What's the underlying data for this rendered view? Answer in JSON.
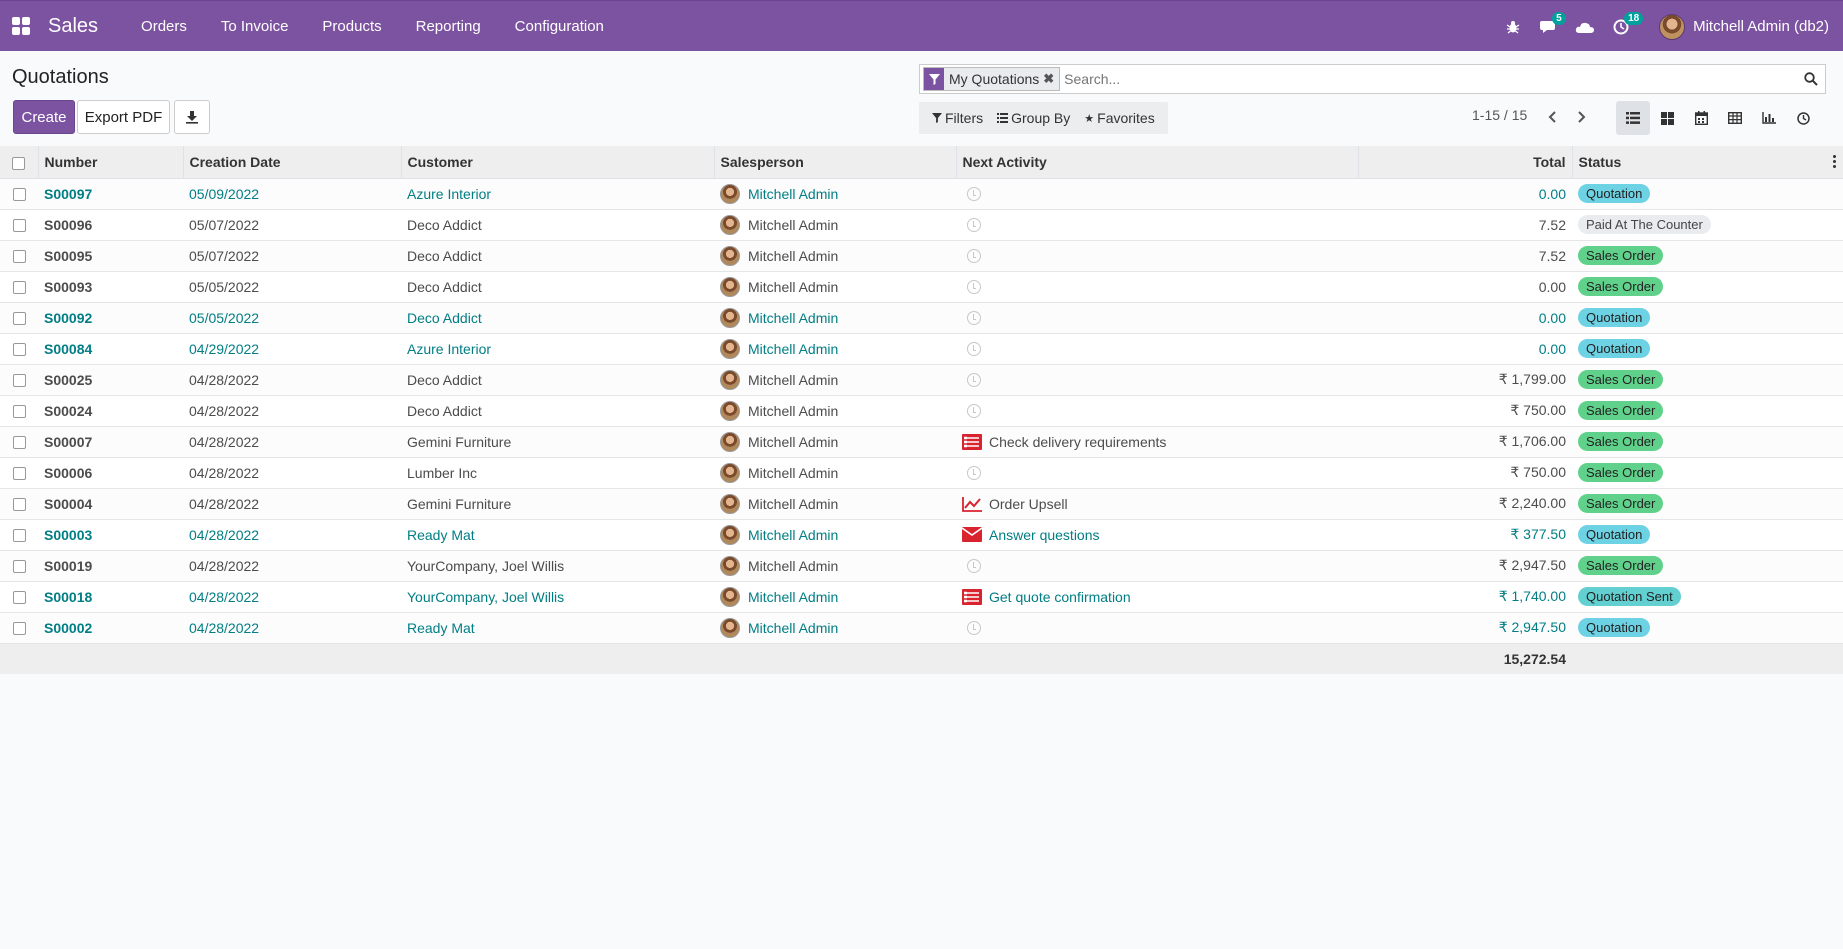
{
  "navbar": {
    "app_name": "Sales",
    "menu": [
      "Orders",
      "To Invoice",
      "Products",
      "Reporting",
      "Configuration"
    ],
    "messages_count": "5",
    "activities_count": "18",
    "user": "Mitchell Admin (db2)"
  },
  "page": {
    "title": "Quotations",
    "create_label": "Create",
    "export_label": "Export PDF"
  },
  "search": {
    "facet": "My Quotations",
    "facet_remove": "✖",
    "placeholder": "Search..."
  },
  "filters": {
    "filters_label": "Filters",
    "groupby_label": "Group By",
    "favorites_label": "Favorites"
  },
  "pager": {
    "value": "1-15 / 15"
  },
  "table": {
    "headers": {
      "number": "Number",
      "date": "Creation Date",
      "customer": "Customer",
      "salesperson": "Salesperson",
      "activity": "Next Activity",
      "total": "Total",
      "status": "Status"
    },
    "rows": [
      {
        "number": "S00097",
        "date": "05/09/2022",
        "customer": "Azure Interior",
        "salesperson": "Mitchell Admin",
        "activity": "",
        "activity_icon": "clock-icon",
        "total": "0.00",
        "status": "Quotation",
        "status_kind": "quotation",
        "highlight": true
      },
      {
        "number": "S00096",
        "date": "05/07/2022",
        "customer": "Deco Addict",
        "salesperson": "Mitchell Admin",
        "activity": "",
        "activity_icon": "clock-icon",
        "total": "7.52",
        "status": "Paid At The Counter",
        "status_kind": "paid",
        "highlight": false
      },
      {
        "number": "S00095",
        "date": "05/07/2022",
        "customer": "Deco Addict",
        "salesperson": "Mitchell Admin",
        "activity": "",
        "activity_icon": "clock-icon",
        "total": "7.52",
        "status": "Sales Order",
        "status_kind": "sales",
        "highlight": false
      },
      {
        "number": "S00093",
        "date": "05/05/2022",
        "customer": "Deco Addict",
        "salesperson": "Mitchell Admin",
        "activity": "",
        "activity_icon": "clock-icon",
        "total": "0.00",
        "status": "Sales Order",
        "status_kind": "sales",
        "highlight": false
      },
      {
        "number": "S00092",
        "date": "05/05/2022",
        "customer": "Deco Addict",
        "salesperson": "Mitchell Admin",
        "activity": "",
        "activity_icon": "clock-icon",
        "total": "0.00",
        "status": "Quotation",
        "status_kind": "quotation",
        "highlight": true
      },
      {
        "number": "S00084",
        "date": "04/29/2022",
        "customer": "Azure Interior",
        "salesperson": "Mitchell Admin",
        "activity": "",
        "activity_icon": "clock-icon",
        "total": "0.00",
        "status": "Quotation",
        "status_kind": "quotation",
        "highlight": true
      },
      {
        "number": "S00025",
        "date": "04/28/2022",
        "customer": "Deco Addict",
        "salesperson": "Mitchell Admin",
        "activity": "",
        "activity_icon": "clock-icon",
        "total": "₹ 1,799.00",
        "status": "Sales Order",
        "status_kind": "sales",
        "highlight": false
      },
      {
        "number": "S00024",
        "date": "04/28/2022",
        "customer": "Deco Addict",
        "salesperson": "Mitchell Admin",
        "activity": "",
        "activity_icon": "clock-icon",
        "total": "₹ 750.00",
        "status": "Sales Order",
        "status_kind": "sales",
        "highlight": false
      },
      {
        "number": "S00007",
        "date": "04/28/2022",
        "customer": "Gemini Furniture",
        "salesperson": "Mitchell Admin",
        "activity": "Check delivery requirements",
        "activity_icon": "tasks-icon",
        "total": "₹ 1,706.00",
        "status": "Sales Order",
        "status_kind": "sales",
        "highlight": false
      },
      {
        "number": "S00006",
        "date": "04/28/2022",
        "customer": "Lumber Inc",
        "salesperson": "Mitchell Admin",
        "activity": "",
        "activity_icon": "clock-icon",
        "total": "₹ 750.00",
        "status": "Sales Order",
        "status_kind": "sales",
        "highlight": false
      },
      {
        "number": "S00004",
        "date": "04/28/2022",
        "customer": "Gemini Furniture",
        "salesperson": "Mitchell Admin",
        "activity": "Order Upsell",
        "activity_icon": "line-chart-icon",
        "total": "₹ 2,240.00",
        "status": "Sales Order",
        "status_kind": "sales",
        "highlight": false
      },
      {
        "number": "S00003",
        "date": "04/28/2022",
        "customer": "Ready Mat",
        "salesperson": "Mitchell Admin",
        "activity": "Answer questions",
        "activity_icon": "envelope-icon",
        "total": "₹ 377.50",
        "status": "Quotation",
        "status_kind": "quotation",
        "highlight": true
      },
      {
        "number": "S00019",
        "date": "04/28/2022",
        "customer": "YourCompany, Joel Willis",
        "salesperson": "Mitchell Admin",
        "activity": "",
        "activity_icon": "clock-icon",
        "total": "₹ 2,947.50",
        "status": "Sales Order",
        "status_kind": "sales",
        "highlight": false
      },
      {
        "number": "S00018",
        "date": "04/28/2022",
        "customer": "YourCompany, Joel Willis",
        "salesperson": "Mitchell Admin",
        "activity": "Get quote confirmation",
        "activity_icon": "tasks-icon",
        "total": "₹ 1,740.00",
        "status": "Quotation Sent",
        "status_kind": "sent",
        "highlight": true
      },
      {
        "number": "S00002",
        "date": "04/28/2022",
        "customer": "Ready Mat",
        "salesperson": "Mitchell Admin",
        "activity": "",
        "activity_icon": "clock-icon",
        "total": "₹ 2,947.50",
        "status": "Quotation",
        "status_kind": "quotation",
        "highlight": true
      }
    ],
    "footer_total": "15,272.54"
  },
  "colors": {
    "brand": "#7c53a0",
    "link": "#017e84",
    "activity_icon": "#d9232e"
  }
}
